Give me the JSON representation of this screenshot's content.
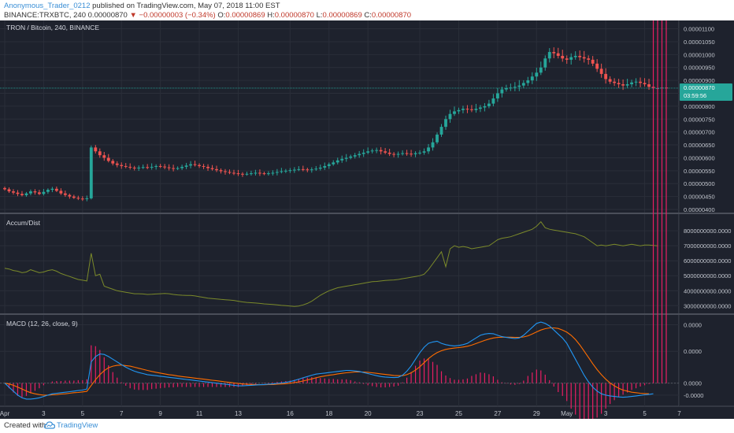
{
  "header": {
    "author": "Anonymous_Trader_0212",
    "published": "published on TradingView.com, May 07, 2018 11:00 EST",
    "symbol": "BINANCE:TRXBTC, 240",
    "last": "0.00000870",
    "change": "−0.00000003 (−0.34%)",
    "o_label": "O:",
    "o_val": "0.00000869",
    "h_label": "H:",
    "h_val": "0.00000870",
    "l_label": "L:",
    "l_val": "0.00000869",
    "c_label": "C:",
    "c_val": "0.00000870"
  },
  "footer": {
    "created_with": "Created with",
    "brand": "TradingView"
  },
  "colors": {
    "bg": "#1e222d",
    "grid": "#2a2e39",
    "up": "#26a69a",
    "down": "#ef5350",
    "accum": "#7b8a2a",
    "macd": "#2196f3",
    "signal": "#ff6d00",
    "hist": "#e91e63",
    "price_tag": "#26a69a"
  },
  "chart_data": [
    {
      "type": "candlestick",
      "title": "TRON / Bitcoin, 240, BINANCE",
      "yticks": [
        "0.00001100",
        "0.00001050",
        "0.00001000",
        "0.00000950",
        "0.00000900",
        "0.00000850",
        "0.00000800",
        "0.00000750",
        "0.00000700",
        "0.00000650",
        "0.00000600",
        "0.00000550",
        "0.00000500",
        "0.00000450",
        "0.00000400"
      ],
      "ylim": [
        4e-06,
        1.12e-05
      ],
      "current_price_label": "0.00000870",
      "countdown_label": "03:59:56",
      "close_series": [
        4.78e-06,
        4.7e-06,
        4.65e-06,
        4.6e-06,
        4.55e-06,
        4.62e-06,
        4.7e-06,
        4.66e-06,
        4.6e-06,
        4.68e-06,
        4.76e-06,
        4.8e-06,
        4.72e-06,
        4.62e-06,
        4.56e-06,
        4.5e-06,
        4.45e-06,
        4.42e-06,
        4.4e-06,
        4.43e-06,
        6.4e-06,
        6.25e-06,
        6.1e-06,
        6e-06,
        5.88e-06,
        5.78e-06,
        5.72e-06,
        5.68e-06,
        5.65e-06,
        5.62e-06,
        5.6e-06,
        5.62e-06,
        5.64e-06,
        5.63e-06,
        5.65e-06,
        5.68e-06,
        5.66e-06,
        5.63e-06,
        5.6e-06,
        5.58e-06,
        5.6e-06,
        5.65e-06,
        5.7e-06,
        5.75e-06,
        5.72e-06,
        5.68e-06,
        5.65e-06,
        5.6e-06,
        5.56e-06,
        5.52e-06,
        5.48e-06,
        5.45e-06,
        5.42e-06,
        5.4e-06,
        5.38e-06,
        5.36e-06,
        5.38e-06,
        5.4e-06,
        5.42e-06,
        5.4e-06,
        5.38e-06,
        5.4e-06,
        5.42e-06,
        5.45e-06,
        5.48e-06,
        5.5e-06,
        5.52e-06,
        5.54e-06,
        5.56e-06,
        5.55e-06,
        5.53e-06,
        5.55e-06,
        5.58e-06,
        5.62e-06,
        5.68e-06,
        5.75e-06,
        5.82e-06,
        5.9e-06,
        5.96e-06,
        6e-06,
        6.05e-06,
        6.1e-06,
        6.15e-06,
        6.2e-06,
        6.25e-06,
        6.28e-06,
        6.3e-06,
        6.25e-06,
        6.2e-06,
        6.15e-06,
        6.12e-06,
        6.15e-06,
        6.18e-06,
        6.16e-06,
        6.14e-06,
        6.18e-06,
        6.2e-06,
        6.25e-06,
        6.4e-06,
        6.6e-06,
        6.9e-06,
        7.2e-06,
        7.5e-06,
        7.7e-06,
        7.8e-06,
        7.85e-06,
        7.9e-06,
        7.88e-06,
        7.85e-06,
        7.9e-06,
        7.95e-06,
        8e-06,
        8.1e-06,
        8.3e-06,
        8.5e-06,
        8.65e-06,
        8.7e-06,
        8.72e-06,
        8.75e-06,
        8.8e-06,
        8.9e-06,
        9e-06,
        9.15e-06,
        9.3e-06,
        9.5e-06,
        9.85e-06,
        1.01e-05,
        1.005e-05,
        9.95e-06,
        9.85e-06,
        9.8e-06,
        9.9e-06,
        9.95e-06,
        9.9e-06,
        9.85e-06,
        9.8e-06,
        9.65e-06,
        9.45e-06,
        9.25e-06,
        9.05e-06,
        8.95e-06,
        8.9e-06,
        8.85e-06,
        8.8e-06,
        8.85e-06,
        8.92e-06,
        8.95e-06,
        8.9e-06,
        8.85e-06,
        8.75e-06,
        8.7e-06,
        8.7e-06,
        8.72e-06,
        8.7e-06
      ]
    },
    {
      "type": "line",
      "title": "Accum/Dist",
      "yticks": [
        "8000000000.0000",
        "7000000000.0000",
        "6000000000.0000",
        "5000000000.0000",
        "4000000000.0000",
        "3000000000.0000"
      ],
      "ylim": [
        2700000000,
        8900000000
      ],
      "values": [
        5500000000,
        5450000000,
        5350000000,
        5300000000,
        5200000000,
        5250000000,
        5400000000,
        5300000000,
        5200000000,
        5250000000,
        5350000000,
        5400000000,
        5300000000,
        5150000000,
        5050000000,
        4950000000,
        4850000000,
        4750000000,
        4700000000,
        4650000000,
        6500000000,
        5000000000,
        5100000000,
        4300000000,
        4200000000,
        4100000000,
        4000000000,
        3950000000,
        3900000000,
        3850000000,
        3800000000,
        3800000000,
        3780000000,
        3750000000,
        3760000000,
        3780000000,
        3800000000,
        3820000000,
        3800000000,
        3750000000,
        3720000000,
        3700000000,
        3690000000,
        3680000000,
        3650000000,
        3600000000,
        3550000000,
        3500000000,
        3480000000,
        3450000000,
        3420000000,
        3400000000,
        3380000000,
        3350000000,
        3300000000,
        3250000000,
        3220000000,
        3200000000,
        3180000000,
        3150000000,
        3120000000,
        3100000000,
        3080000000,
        3050000000,
        3020000000,
        3000000000,
        2980000000,
        2950000000,
        2980000000,
        3050000000,
        3150000000,
        3300000000,
        3500000000,
        3700000000,
        3850000000,
        4000000000,
        4100000000,
        4200000000,
        4250000000,
        4300000000,
        4350000000,
        4400000000,
        4450000000,
        4500000000,
        4550000000,
        4600000000,
        4620000000,
        4650000000,
        4680000000,
        4700000000,
        4720000000,
        4750000000,
        4800000000,
        4850000000,
        4900000000,
        4950000000,
        5000000000,
        5100000000,
        5400000000,
        5800000000,
        6200000000,
        6600000000,
        5600000000,
        6800000000,
        7000000000,
        6900000000,
        6950000000,
        6900000000,
        6800000000,
        6850000000,
        6900000000,
        6950000000,
        7000000000,
        7200000000,
        7400000000,
        7500000000,
        7550000000,
        7600000000,
        7700000000,
        7800000000,
        7900000000,
        8000000000,
        8100000000,
        8300000000,
        8600000000,
        8200000000,
        8100000000,
        8050000000,
        8000000000,
        7950000000,
        7900000000,
        7850000000,
        7800000000,
        7700000000,
        7600000000,
        7400000000,
        7200000000,
        7000000000,
        7050000000,
        7000000000,
        7050000000,
        7100000000,
        7050000000,
        7000000000,
        7050000000,
        7100000000,
        7050000000,
        7000000000,
        7050000000,
        7050000000,
        7020000000,
        7000000000
      ]
    },
    {
      "type": "line",
      "title": "MACD (12, 26, close, 9)",
      "yticks": [
        "0.0000",
        "0.0000",
        "0.0000",
        "-0.0000"
      ],
      "ylim": [
        -0.075,
        0.245
      ],
      "macd": [
        0.0,
        -0.015,
        -0.03,
        -0.045,
        -0.055,
        -0.06,
        -0.06,
        -0.058,
        -0.055,
        -0.05,
        -0.045,
        -0.04,
        -0.038,
        -0.036,
        -0.034,
        -0.032,
        -0.03,
        -0.028,
        -0.026,
        -0.022,
        0.08,
        0.1,
        0.11,
        0.108,
        0.1,
        0.09,
        0.08,
        0.07,
        0.06,
        0.052,
        0.045,
        0.04,
        0.036,
        0.032,
        0.03,
        0.028,
        0.026,
        0.024,
        0.022,
        0.02,
        0.018,
        0.016,
        0.014,
        0.012,
        0.01,
        0.008,
        0.006,
        0.004,
        0.002,
        0.0,
        -0.002,
        -0.004,
        -0.006,
        -0.008,
        -0.01,
        -0.01,
        -0.009,
        -0.008,
        -0.007,
        -0.006,
        -0.005,
        -0.004,
        -0.003,
        -0.001,
        0.001,
        0.003,
        0.006,
        0.01,
        0.015,
        0.02,
        0.025,
        0.03,
        0.034,
        0.036,
        0.038,
        0.04,
        0.042,
        0.044,
        0.046,
        0.048,
        0.048,
        0.046,
        0.044,
        0.04,
        0.036,
        0.032,
        0.028,
        0.025,
        0.023,
        0.022,
        0.021,
        0.022,
        0.03,
        0.045,
        0.065,
        0.09,
        0.115,
        0.135,
        0.15,
        0.155,
        0.158,
        0.15,
        0.145,
        0.142,
        0.14,
        0.142,
        0.145,
        0.15,
        0.16,
        0.17,
        0.18,
        0.185,
        0.187,
        0.186,
        0.18,
        0.175,
        0.172,
        0.17,
        0.168,
        0.17,
        0.18,
        0.195,
        0.21,
        0.225,
        0.23,
        0.225,
        0.215,
        0.2,
        0.185,
        0.17,
        0.15,
        0.12,
        0.09,
        0.06,
        0.03,
        0.005,
        -0.015,
        -0.03,
        -0.04,
        -0.045,
        -0.048,
        -0.05,
        -0.052,
        -0.053,
        -0.052,
        -0.05,
        -0.048,
        -0.046,
        -0.044,
        -0.042,
        -0.04
      ],
      "signal": [
        0.0,
        -0.003,
        -0.008,
        -0.015,
        -0.022,
        -0.03,
        -0.036,
        -0.04,
        -0.043,
        -0.045,
        -0.045,
        -0.044,
        -0.043,
        -0.041,
        -0.04,
        -0.038,
        -0.036,
        -0.035,
        -0.033,
        -0.031,
        -0.009,
        0.013,
        0.032,
        0.047,
        0.058,
        0.064,
        0.067,
        0.068,
        0.066,
        0.064,
        0.06,
        0.056,
        0.052,
        0.048,
        0.044,
        0.041,
        0.038,
        0.035,
        0.032,
        0.03,
        0.027,
        0.025,
        0.023,
        0.021,
        0.019,
        0.017,
        0.015,
        0.013,
        0.011,
        0.009,
        0.007,
        0.005,
        0.003,
        0.001,
        -0.001,
        -0.003,
        -0.004,
        -0.005,
        -0.005,
        -0.006,
        -0.006,
        -0.005,
        -0.005,
        -0.004,
        -0.003,
        -0.002,
        0.0,
        0.002,
        0.005,
        0.008,
        0.012,
        0.016,
        0.02,
        0.024,
        0.027,
        0.03,
        0.032,
        0.035,
        0.037,
        0.039,
        0.041,
        0.042,
        0.042,
        0.042,
        0.041,
        0.039,
        0.037,
        0.035,
        0.033,
        0.031,
        0.029,
        0.028,
        0.028,
        0.032,
        0.039,
        0.049,
        0.062,
        0.077,
        0.092,
        0.105,
        0.115,
        0.122,
        0.127,
        0.13,
        0.132,
        0.134,
        0.136,
        0.139,
        0.143,
        0.149,
        0.155,
        0.161,
        0.166,
        0.17,
        0.172,
        0.173,
        0.173,
        0.173,
        0.172,
        0.172,
        0.174,
        0.178,
        0.185,
        0.193,
        0.2,
        0.205,
        0.208,
        0.208,
        0.206,
        0.2,
        0.192,
        0.18,
        0.164,
        0.144,
        0.121,
        0.097,
        0.073,
        0.051,
        0.032,
        0.015,
        0.001,
        -0.01,
        -0.019,
        -0.026,
        -0.03,
        -0.034,
        -0.036,
        -0.038,
        -0.039,
        -0.04
      ]
    }
  ],
  "xaxis": {
    "labels": [
      "Apr",
      "3",
      "5",
      "7",
      "9",
      "11",
      "13",
      "16",
      "18",
      "20",
      "23",
      "25",
      "27",
      "29",
      "May",
      "3",
      "5",
      "7"
    ],
    "label_bar_index": [
      0,
      9,
      18,
      27,
      36,
      45,
      54,
      66,
      75,
      84,
      96,
      105,
      114,
      123,
      130,
      139,
      148,
      156
    ]
  }
}
